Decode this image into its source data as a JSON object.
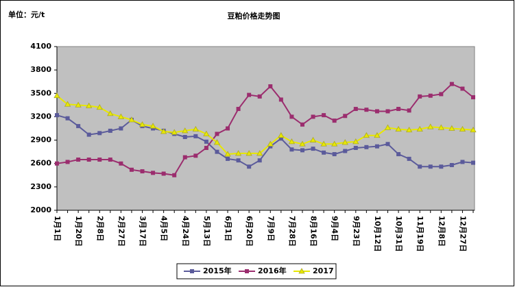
{
  "chart_data": {
    "type": "line",
    "title": "豆粕价格走势图",
    "unit_label": "单位：元/t",
    "categories": [
      "1月1日",
      null,
      "1月20日",
      null,
      "2月8日",
      null,
      "2月27日",
      null,
      "3月17日",
      null,
      "4月5日",
      null,
      "4月24日",
      null,
      "5月13日",
      null,
      "6月1日",
      null,
      "6月20日",
      null,
      "7月9日",
      null,
      "7月28日",
      null,
      "8月16日",
      null,
      "9月4日",
      null,
      "9月23日",
      null,
      "10月12日",
      null,
      "10月31日",
      null,
      "11月19日",
      null,
      "12月8日",
      null,
      "12月27日",
      null
    ],
    "series": [
      {
        "name": "2015年",
        "color": "#5b5b9b",
        "marker": "square",
        "values": [
          3220,
          3180,
          3080,
          2970,
          2990,
          3020,
          3050,
          3160,
          3080,
          3050,
          3020,
          2980,
          2940,
          2950,
          2880,
          2750,
          2660,
          2640,
          2560,
          2640,
          2820,
          2920,
          2780,
          2770,
          2790,
          2740,
          2720,
          2760,
          2800,
          2810,
          2820,
          2850,
          2720,
          2660,
          2560,
          2560,
          2560,
          2580,
          2620,
          2610
        ]
      },
      {
        "name": "2016年",
        "color": "#9b2d6e",
        "marker": "square",
        "values": [
          2600,
          2620,
          2650,
          2650,
          2650,
          2650,
          2600,
          2520,
          2500,
          2480,
          2470,
          2450,
          2680,
          2700,
          2800,
          2980,
          3050,
          3300,
          3480,
          3460,
          3590,
          3420,
          3200,
          3100,
          3200,
          3220,
          3150,
          3210,
          3300,
          3290,
          3270,
          3270,
          3300,
          3280,
          3460,
          3470,
          3490,
          3620,
          3560,
          3450
        ]
      },
      {
        "name": "2017",
        "color": "#e8e800",
        "marker": "triangle",
        "values": [
          3470,
          3360,
          3350,
          3340,
          3320,
          3240,
          3200,
          3160,
          3100,
          3080,
          3010,
          3000,
          3020,
          3040,
          2980,
          2870,
          2720,
          2730,
          2730,
          2730,
          2850,
          2960,
          2880,
          2850,
          2900,
          2850,
          2850,
          2870,
          2880,
          2960,
          2960,
          3060,
          3040,
          3030,
          3040,
          3070,
          3060,
          3050,
          3040,
          3030
        ]
      }
    ],
    "ylim": [
      2000,
      4100
    ],
    "yticks": [
      2000,
      2300,
      2600,
      2900,
      3200,
      3500,
      3800,
      4100
    ],
    "grid": false,
    "legend": "bottom"
  }
}
